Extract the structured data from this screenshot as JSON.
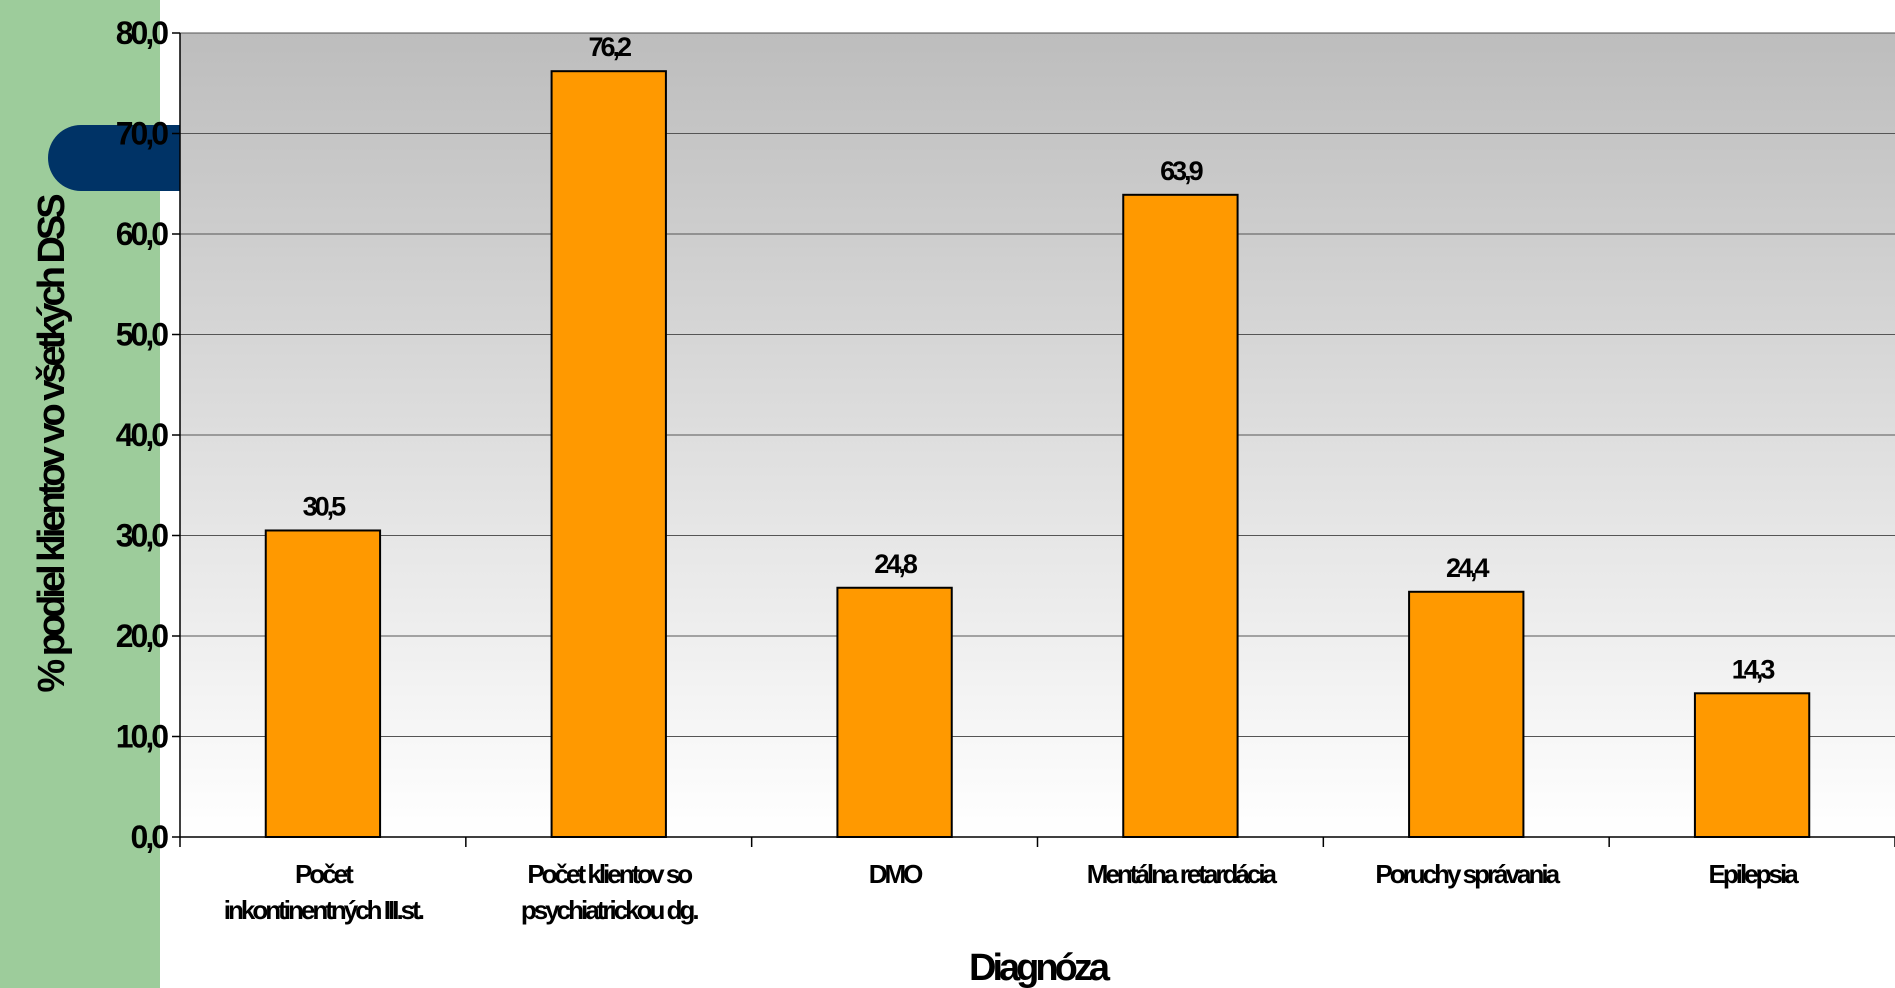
{
  "chart_data": {
    "type": "bar",
    "categories": [
      [
        "Počet",
        "inkontinentných III.st."
      ],
      [
        "Počet klientov so",
        "psychiatrickou dg."
      ],
      [
        "DMO"
      ],
      [
        "Mentálna retardácia"
      ],
      [
        "Poruchy správania"
      ],
      [
        "Epilepsia"
      ]
    ],
    "values": [
      30.5,
      76.2,
      24.8,
      63.9,
      24.4,
      14.3
    ],
    "value_labels": [
      "30,5",
      "76,2",
      "24,8",
      "63,9",
      "24,4",
      "14,3"
    ],
    "y_ticks": [
      "0,0",
      "10,0",
      "20,0",
      "30,0",
      "40,0",
      "50,0",
      "60,0",
      "70,0",
      "80,0"
    ],
    "ylim": [
      0,
      80
    ],
    "xlabel": "Diagnóza",
    "ylabel": "% podiel klientov vo všetkých DSS",
    "grid": true,
    "colors": {
      "bar": "#ff9900",
      "bar_outline": "#000000",
      "plot_bg_top": "#bdbdbd",
      "plot_bg_bottom": "#ffffff",
      "gridline": "#555555",
      "side_strip": "#9dcc9b",
      "pill": "#003366"
    }
  }
}
